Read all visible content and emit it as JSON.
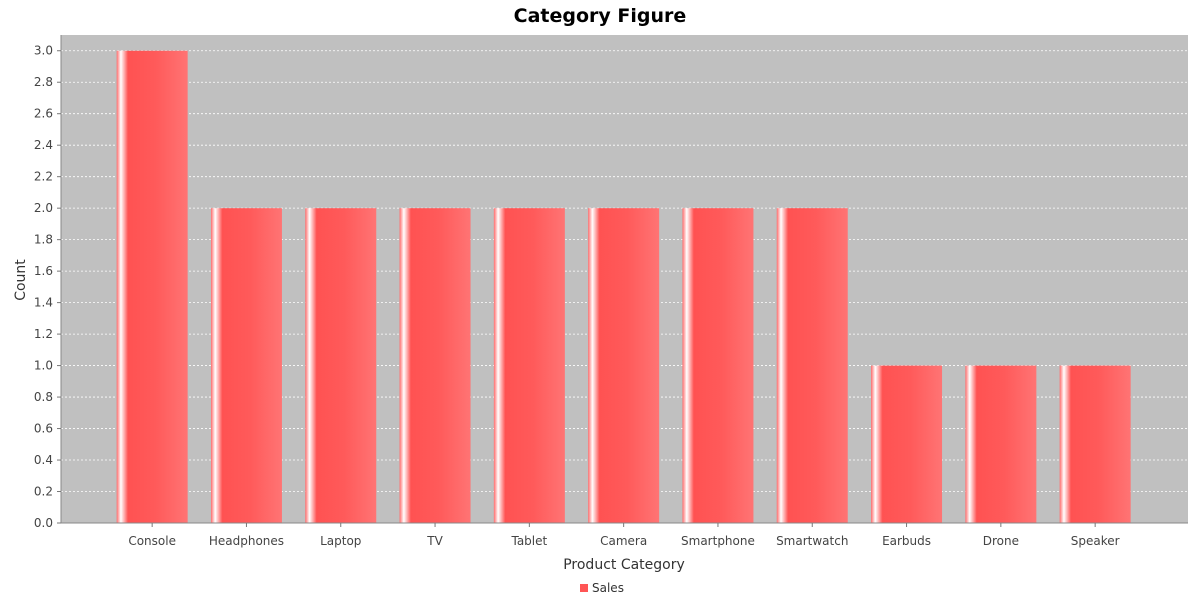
{
  "chart_data": {
    "type": "bar",
    "title": "Category Figure",
    "xlabel": "Product Category",
    "ylabel": "Count",
    "categories": [
      "Console",
      "Headphones",
      "Laptop",
      "TV",
      "Tablet",
      "Camera",
      "Smartphone",
      "Smartwatch",
      "Earbuds",
      "Drone",
      "Speaker"
    ],
    "series": [
      {
        "name": "Sales",
        "values": [
          3,
          2,
          2,
          2,
          2,
          2,
          2,
          2,
          1,
          1,
          1
        ],
        "color": "#ff5555"
      }
    ],
    "ylim": [
      0,
      3.1
    ],
    "yticks": [
      "0.0",
      "0.2",
      "0.4",
      "0.6",
      "0.8",
      "1.0",
      "1.2",
      "1.4",
      "1.6",
      "1.8",
      "2.0",
      "2.2",
      "2.4",
      "2.6",
      "2.8",
      "3.0"
    ],
    "grid": true,
    "legend_position": "bottom-center",
    "plot_background": "#c0c0c0"
  }
}
